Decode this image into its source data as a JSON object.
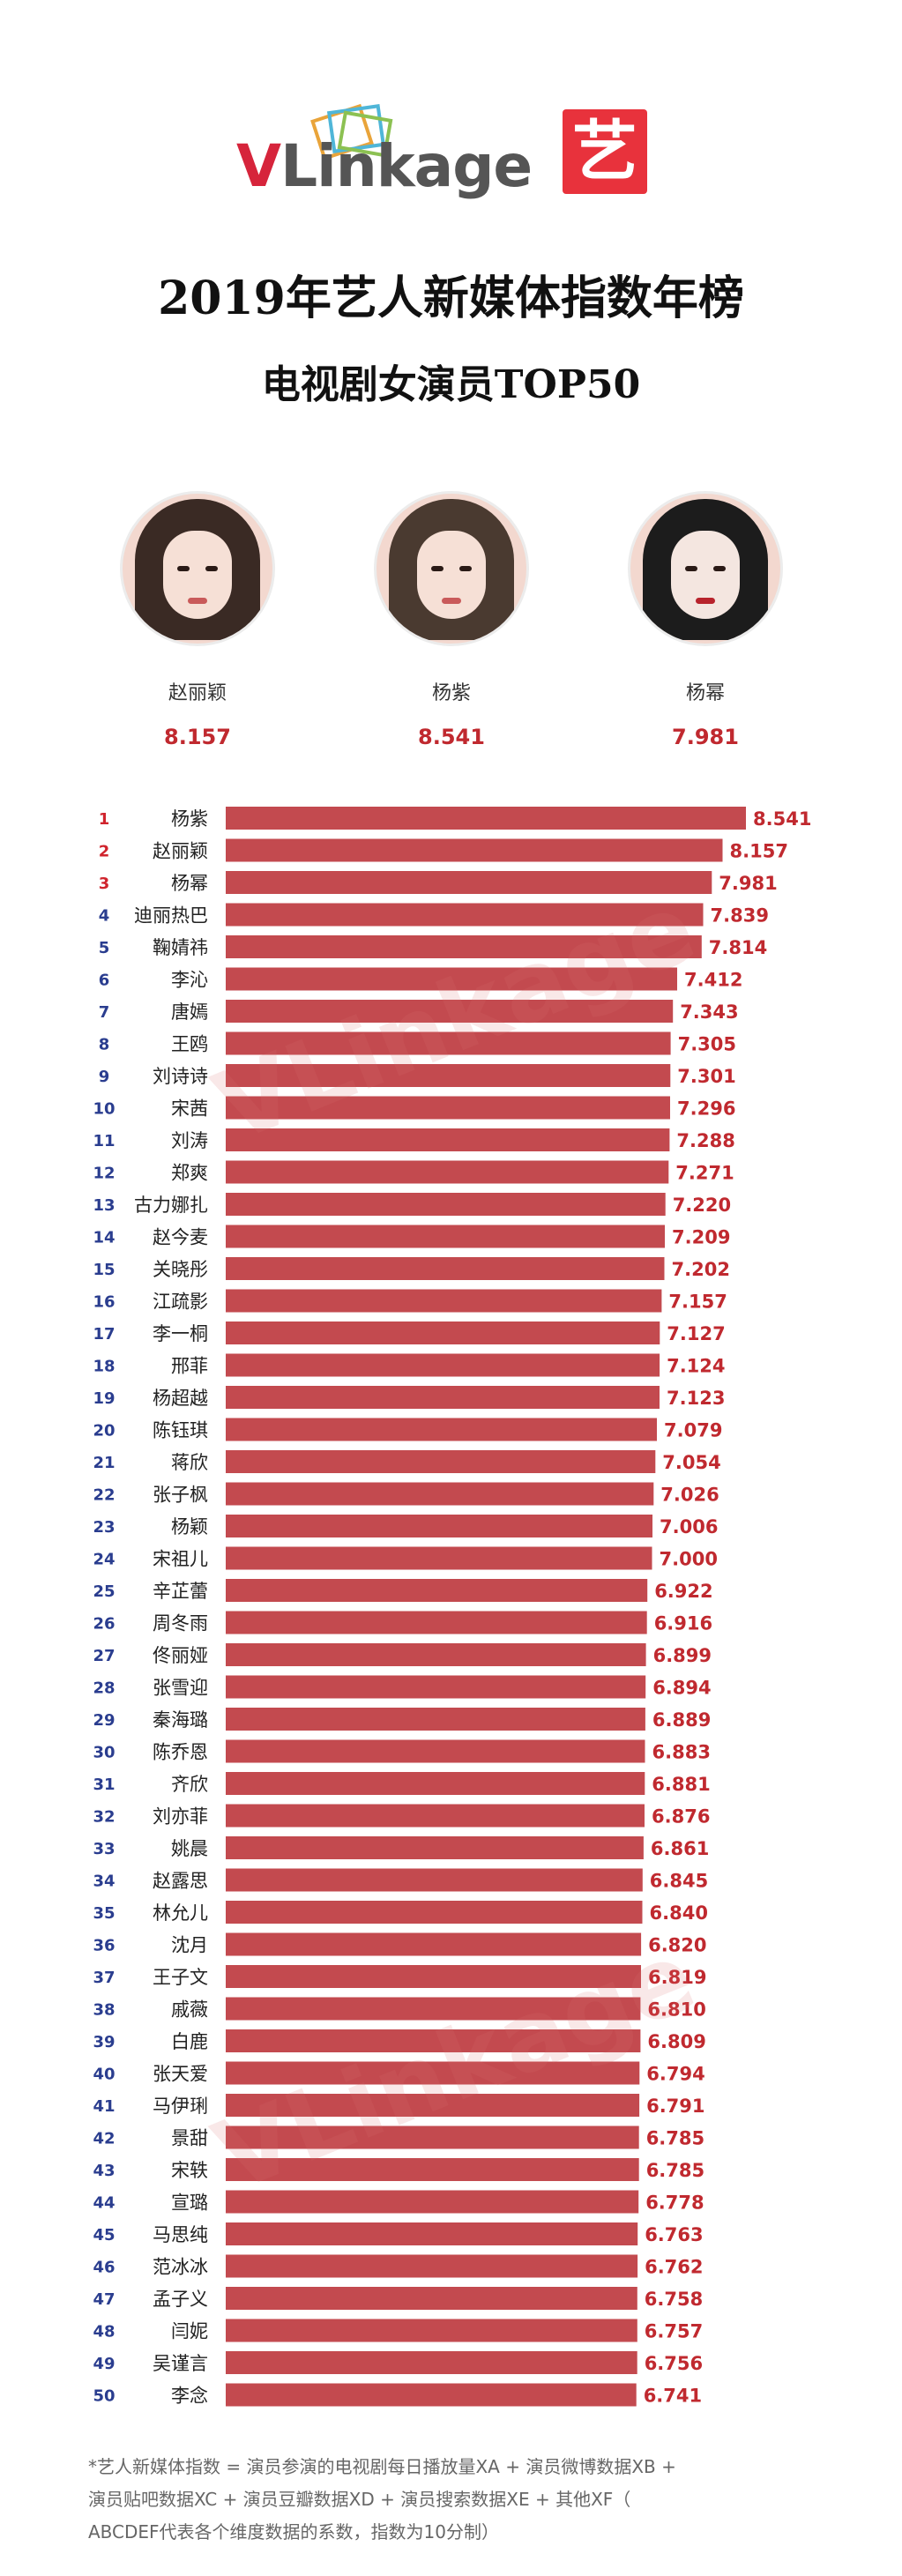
{
  "brand": {
    "logo_v": "V",
    "logo_rest": "Linkage",
    "badge": "艺",
    "accent": "#d6243b"
  },
  "header": {
    "title": "2019年艺人新媒体指数年榜",
    "subtitle": "电视剧女演员TOP50"
  },
  "top3": [
    {
      "name": "赵丽颖",
      "score": "8.157"
    },
    {
      "name": "杨紫",
      "score": "8.541"
    },
    {
      "name": "杨幂",
      "score": "7.981"
    }
  ],
  "watermark": "VLinkage",
  "chart_data": {
    "type": "bar",
    "orientation": "horizontal",
    "title": "电视剧女演员TOP50",
    "bar_color": "#c34a4f",
    "value_color": "#c0292f",
    "categories": [
      "杨紫",
      "赵丽颖",
      "杨幂",
      "迪丽热巴",
      "鞠婧祎",
      "李沁",
      "唐嫣",
      "王鸥",
      "刘诗诗",
      "宋茜",
      "刘涛",
      "郑爽",
      "古力娜扎",
      "赵今麦",
      "关晓彤",
      "江疏影",
      "李一桐",
      "邢菲",
      "杨超越",
      "陈钰琪",
      "蒋欣",
      "张子枫",
      "杨颖",
      "宋祖儿",
      "辛芷蕾",
      "周冬雨",
      "佟丽娅",
      "张雪迎",
      "秦海璐",
      "陈乔恩",
      "齐欣",
      "刘亦菲",
      "姚晨",
      "赵露思",
      "林允儿",
      "沈月",
      "王子文",
      "戚薇",
      "白鹿",
      "张天爱",
      "马伊琍",
      "景甜",
      "宋轶",
      "宣璐",
      "马思纯",
      "范冰冰",
      "孟子义",
      "闫妮",
      "吴谨言",
      "李念"
    ],
    "values": [
      8.541,
      8.157,
      7.981,
      7.839,
      7.814,
      7.412,
      7.343,
      7.305,
      7.301,
      7.296,
      7.288,
      7.271,
      7.22,
      7.209,
      7.202,
      7.157,
      7.127,
      7.124,
      7.123,
      7.079,
      7.054,
      7.026,
      7.006,
      7.0,
      6.922,
      6.916,
      6.899,
      6.894,
      6.889,
      6.883,
      6.881,
      6.876,
      6.861,
      6.845,
      6.84,
      6.82,
      6.819,
      6.81,
      6.809,
      6.794,
      6.791,
      6.785,
      6.785,
      6.778,
      6.763,
      6.762,
      6.758,
      6.757,
      6.756,
      6.741
    ],
    "value_labels": [
      "8.541",
      "8.157",
      "7.981",
      "7.839",
      "7.814",
      "7.412",
      "7.343",
      "7.305",
      "7.301",
      "7.296",
      "7.288",
      "7.271",
      "7.220",
      "7.209",
      "7.202",
      "7.157",
      "7.127",
      "7.124",
      "7.123",
      "7.079",
      "7.054",
      "7.026",
      "7.006",
      "7.000",
      "6.922",
      "6.916",
      "6.899",
      "6.894",
      "6.889",
      "6.883",
      "6.881",
      "6.876",
      "6.861",
      "6.845",
      "6.840",
      "6.820",
      "6.819",
      "6.810",
      "6.809",
      "6.794",
      "6.791",
      "6.785",
      "6.785",
      "6.778",
      "6.763",
      "6.762",
      "6.758",
      "6.757",
      "6.756",
      "6.741"
    ],
    "ranks": [
      "1",
      "2",
      "3",
      "4",
      "5",
      "6",
      "7",
      "8",
      "9",
      "10",
      "11",
      "12",
      "13",
      "14",
      "15",
      "16",
      "17",
      "18",
      "19",
      "20",
      "21",
      "22",
      "23",
      "24",
      "25",
      "26",
      "27",
      "28",
      "29",
      "30",
      "31",
      "32",
      "33",
      "34",
      "35",
      "36",
      "37",
      "38",
      "39",
      "40",
      "41",
      "42",
      "43",
      "44",
      "45",
      "46",
      "47",
      "48",
      "49",
      "50"
    ]
  },
  "footnote": {
    "line1": "*艺人新媒体指数 = 演员参演的电视剧每日播放量XA + 演员微博数据XB +",
    "line2": "演员贴吧数据XC + 演员豆瓣数据XD + 演员搜索数据XE + 其他XF（",
    "line3": "ABCDEF代表各个维度数据的系数，指数为10分制）"
  }
}
